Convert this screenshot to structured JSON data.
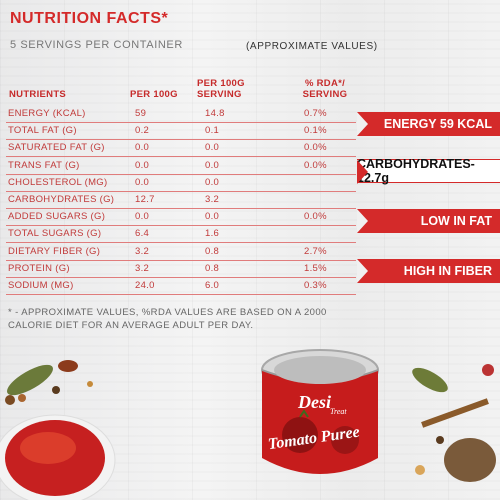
{
  "header": {
    "title": "NUTRITION FACTS*",
    "subtitle": "5 SERVINGS PER CONTAINER",
    "approx": "(APPROXIMATE VALUES)"
  },
  "columns": {
    "nutrients": "NUTRIENTS",
    "per100": "PER 100G",
    "per_serving": "PER 100G SERVING",
    "rda": "% RDA*/ SERVING"
  },
  "rows": [
    {
      "name": "ENERGY (KCAL)",
      "per100": "59",
      "serving": "14.8",
      "rda": "0.7%"
    },
    {
      "name": "TOTAL FAT (G)",
      "per100": "0.2",
      "serving": "0.1",
      "rda": "0.1%"
    },
    {
      "name": "SATURATED FAT (G)",
      "per100": "0.0",
      "serving": "0.0",
      "rda": "0.0%"
    },
    {
      "name": "TRANS FAT (G)",
      "per100": "0.0",
      "serving": "0.0",
      "rda": "0.0%"
    },
    {
      "name": "CHOLESTEROL (MG)",
      "per100": "0.0",
      "serving": "0.0",
      "rda": ""
    },
    {
      "name": "CARBOHYDRATES (G)",
      "per100": "12.7",
      "serving": "3.2",
      "rda": ""
    },
    {
      "name": "ADDED SUGARS (G)",
      "per100": "0.0",
      "serving": "0.0",
      "rda": "0.0%"
    },
    {
      "name": "TOTAL SUGARS (G)",
      "per100": "6.4",
      "serving": "1.6",
      "rda": ""
    },
    {
      "name": "DIETARY FIBER (G)",
      "per100": "3.2",
      "serving": "0.8",
      "rda": "2.7%"
    },
    {
      "name": "PROTEIN (G)",
      "per100": "3.2",
      "serving": "0.8",
      "rda": "1.5%"
    },
    {
      "name": "SODIUM (MG)",
      "per100": "24.0",
      "serving": "6.0",
      "rda": "0.3%"
    }
  ],
  "banners": {
    "energy": "ENERGY 59 KCAL",
    "carbs": "CARBOHYDRATES-12.7g",
    "fat": "LOW IN FAT",
    "fiber": "HIGH IN FIBER"
  },
  "footnote": "* - APPROXIMATE VALUES, %RDA VALUES ARE BASED ON A 2000 CALORIE DIET FOR AN AVERAGE ADULT PER DAY.",
  "product": {
    "brand": "Desi",
    "brand_sub": "Treat",
    "name": "Tomato Puree"
  },
  "colors": {
    "accent": "#d42a2a",
    "text": "#c13a3a",
    "tomato": "#c62020"
  }
}
